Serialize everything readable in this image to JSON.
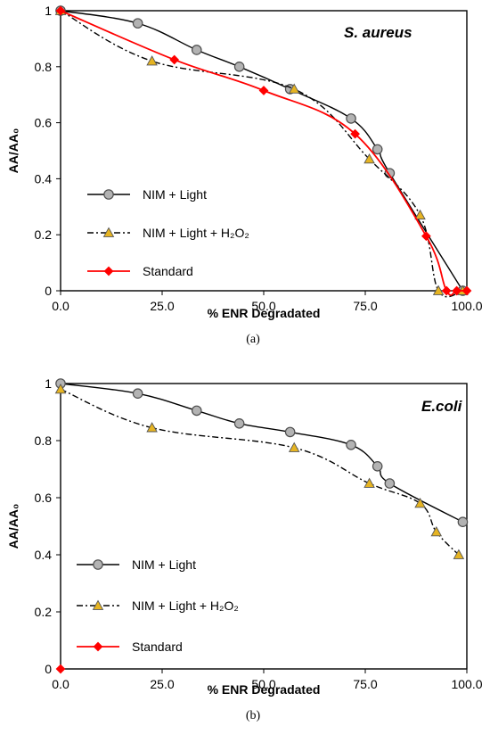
{
  "chart_data": [
    {
      "type": "line",
      "panel": "(a)",
      "annotation": "S. aureus",
      "xlabel": "% ENR Degradated",
      "ylabel": "AA/AA₀",
      "xlim": [
        0,
        100
      ],
      "ylim": [
        0,
        1
      ],
      "xticks": [
        "0.0",
        "25.0",
        "50.0",
        "75.0",
        "100.0"
      ],
      "yticks": [
        "0",
        "0.2",
        "0.4",
        "0.6",
        "0.8",
        "1"
      ],
      "grid": false,
      "legend_position": "bottom-left",
      "series": [
        {
          "name": "NIM + Light",
          "color": "#000000",
          "marker": "circle",
          "marker_fill": "#b3b3b3",
          "dash": "solid",
          "points": [
            [
              0,
              1
            ],
            [
              19,
              0.955
            ],
            [
              33.5,
              0.86
            ],
            [
              44,
              0.8
            ],
            [
              56.5,
              0.72
            ],
            [
              71.5,
              0.615
            ],
            [
              78,
              0.505
            ],
            [
              81,
              0.42
            ],
            [
              99,
              0
            ]
          ]
        },
        {
          "name": "NIM + Light + H₂O₂",
          "color": "#000000",
          "marker": "triangle",
          "marker_fill": "#e6b422",
          "dash": "dashdot",
          "points": [
            [
              0,
              1
            ],
            [
              22.5,
              0.82
            ],
            [
              57.5,
              0.72
            ],
            [
              76,
              0.47
            ],
            [
              88.5,
              0.27
            ],
            [
              93,
              0
            ],
            [
              99,
              0
            ]
          ]
        },
        {
          "name": "Standard",
          "color": "#ff0000",
          "marker": "diamond",
          "marker_fill": "#ff0000",
          "dash": "solid",
          "points": [
            [
              0,
              1
            ],
            [
              28,
              0.825
            ],
            [
              50,
              0.715
            ],
            [
              72.5,
              0.56
            ],
            [
              90,
              0.195
            ],
            [
              95,
              0
            ],
            [
              97.5,
              0
            ],
            [
              100,
              0
            ]
          ]
        }
      ]
    },
    {
      "type": "line",
      "panel": "(b)",
      "annotation": "E.coli",
      "xlabel": "% ENR Degradated",
      "ylabel": "AA/AA₀",
      "xlim": [
        0,
        100
      ],
      "ylim": [
        0,
        1
      ],
      "xticks": [
        "0.0",
        "25.0",
        "50.0",
        "75.0",
        "100.0"
      ],
      "yticks": [
        "0",
        "0.2",
        "0.4",
        "0.6",
        "0.8",
        "1"
      ],
      "grid": false,
      "legend_position": "bottom-left",
      "series": [
        {
          "name": "NIM + Light",
          "color": "#000000",
          "marker": "circle",
          "marker_fill": "#b3b3b3",
          "dash": "solid",
          "points": [
            [
              0,
              1
            ],
            [
              19,
              0.965
            ],
            [
              33.5,
              0.905
            ],
            [
              44,
              0.86
            ],
            [
              56.5,
              0.83
            ],
            [
              71.5,
              0.785
            ],
            [
              78,
              0.71
            ],
            [
              81,
              0.65
            ],
            [
              99,
              0.515
            ]
          ]
        },
        {
          "name": "NIM + Light + H₂O₂",
          "color": "#000000",
          "marker": "triangle",
          "marker_fill": "#e6b422",
          "dash": "dashdot",
          "points": [
            [
              0,
              0.98
            ],
            [
              22.5,
              0.845
            ],
            [
              57.5,
              0.775
            ],
            [
              76,
              0.65
            ],
            [
              88.5,
              0.58
            ],
            [
              92.5,
              0.48
            ],
            [
              98,
              0.4
            ]
          ]
        },
        {
          "name": "Standard",
          "color": "#ff0000",
          "marker": "diamond",
          "marker_fill": "#ff0000",
          "dash": "solid",
          "points": [
            [
              0,
              0
            ]
          ]
        }
      ]
    }
  ]
}
